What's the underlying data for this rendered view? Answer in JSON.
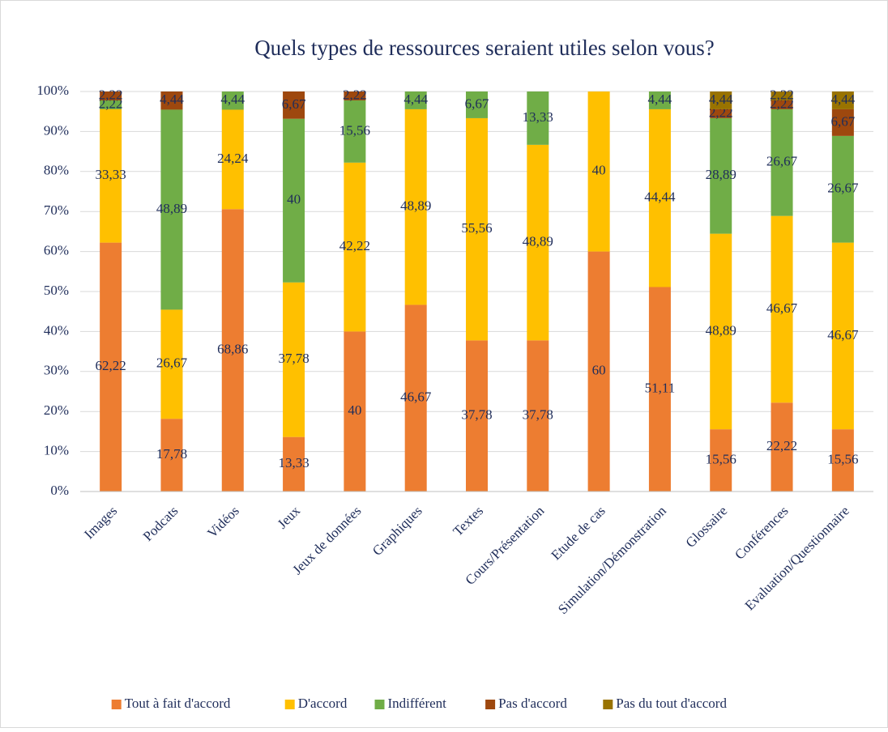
{
  "chart_data": {
    "type": "stacked_bar_percent",
    "title": "Quels types de ressources seraient utiles selon vous?",
    "categories": [
      "Images",
      "Podcats",
      "Vidéos",
      "Jeux",
      "Jeux de données",
      "Graphiques",
      "Textes",
      "Cours/Présentation",
      "Etude de cas",
      "Simulation/Démonstration",
      "Glossaire",
      "Conférences",
      "Evaluation/Questionnaire"
    ],
    "series": [
      {
        "name": "Tout à fait d'accord",
        "color": "#ed7d31",
        "values": [
          62.22,
          17.78,
          68.86,
          13.33,
          40,
          46.67,
          37.78,
          37.78,
          60,
          51.11,
          15.56,
          22.22,
          15.56
        ],
        "value_labels": [
          "62,22",
          "17,78",
          "68,86",
          "13,33",
          "40",
          "46,67",
          "37,78",
          "37,78",
          "60",
          "51,11",
          "15,56",
          "22,22",
          "15,56"
        ]
      },
      {
        "name": "D'accord",
        "color": "#ffc000",
        "values": [
          33.33,
          26.67,
          24.24,
          37.78,
          42.22,
          48.89,
          55.56,
          48.89,
          40,
          44.44,
          48.89,
          46.67,
          46.67
        ],
        "value_labels": [
          "33,33",
          "26,67",
          "24,24",
          "37,78",
          "42,22",
          "48,89",
          "55,56",
          "48,89",
          "40",
          "44,44",
          "48,89",
          "46,67",
          "46,67"
        ]
      },
      {
        "name": "Indifférent",
        "color": "#70ad47",
        "values": [
          2.22,
          48.89,
          4.44,
          40,
          15.56,
          4.44,
          6.67,
          13.33,
          null,
          4.44,
          28.89,
          26.67,
          26.67
        ],
        "value_labels": [
          "2,22",
          "48,89",
          "4,44",
          "40",
          "15,56",
          "4,44",
          "6,67",
          "13,33",
          null,
          "4,44",
          "28,89",
          "26,67",
          "26,67"
        ]
      },
      {
        "name": "Pas d'accord",
        "color": "#9e480e",
        "values": [
          2.22,
          4.44,
          null,
          6.67,
          2.22,
          null,
          null,
          null,
          null,
          null,
          2.22,
          2.22,
          6.67
        ],
        "value_labels": [
          "2,22",
          "4,44",
          null,
          "6,67",
          "2,22",
          null,
          null,
          null,
          null,
          null,
          "2,22",
          "2,22",
          "6,67"
        ]
      },
      {
        "name": "Pas du tout d'accord",
        "color": "#997300",
        "values": [
          null,
          null,
          null,
          null,
          null,
          null,
          null,
          null,
          null,
          null,
          4.44,
          2.22,
          4.44
        ],
        "value_labels": [
          null,
          null,
          null,
          null,
          null,
          null,
          null,
          null,
          null,
          null,
          "4,44",
          "2,22",
          "4,44"
        ]
      }
    ],
    "ylim": [
      0,
      100
    ],
    "yticks": [
      {
        "value": 0,
        "label": "0%"
      },
      {
        "value": 10,
        "label": "10%"
      },
      {
        "value": 20,
        "label": "20%"
      },
      {
        "value": 30,
        "label": "30%"
      },
      {
        "value": 40,
        "label": "40%"
      },
      {
        "value": 50,
        "label": "50%"
      },
      {
        "value": 60,
        "label": "60%"
      },
      {
        "value": 70,
        "label": "70%"
      },
      {
        "value": 80,
        "label": "80%"
      },
      {
        "value": 90,
        "label": "90%"
      },
      {
        "value": 100,
        "label": "100%"
      }
    ],
    "grid": true,
    "legend": "bottom"
  }
}
